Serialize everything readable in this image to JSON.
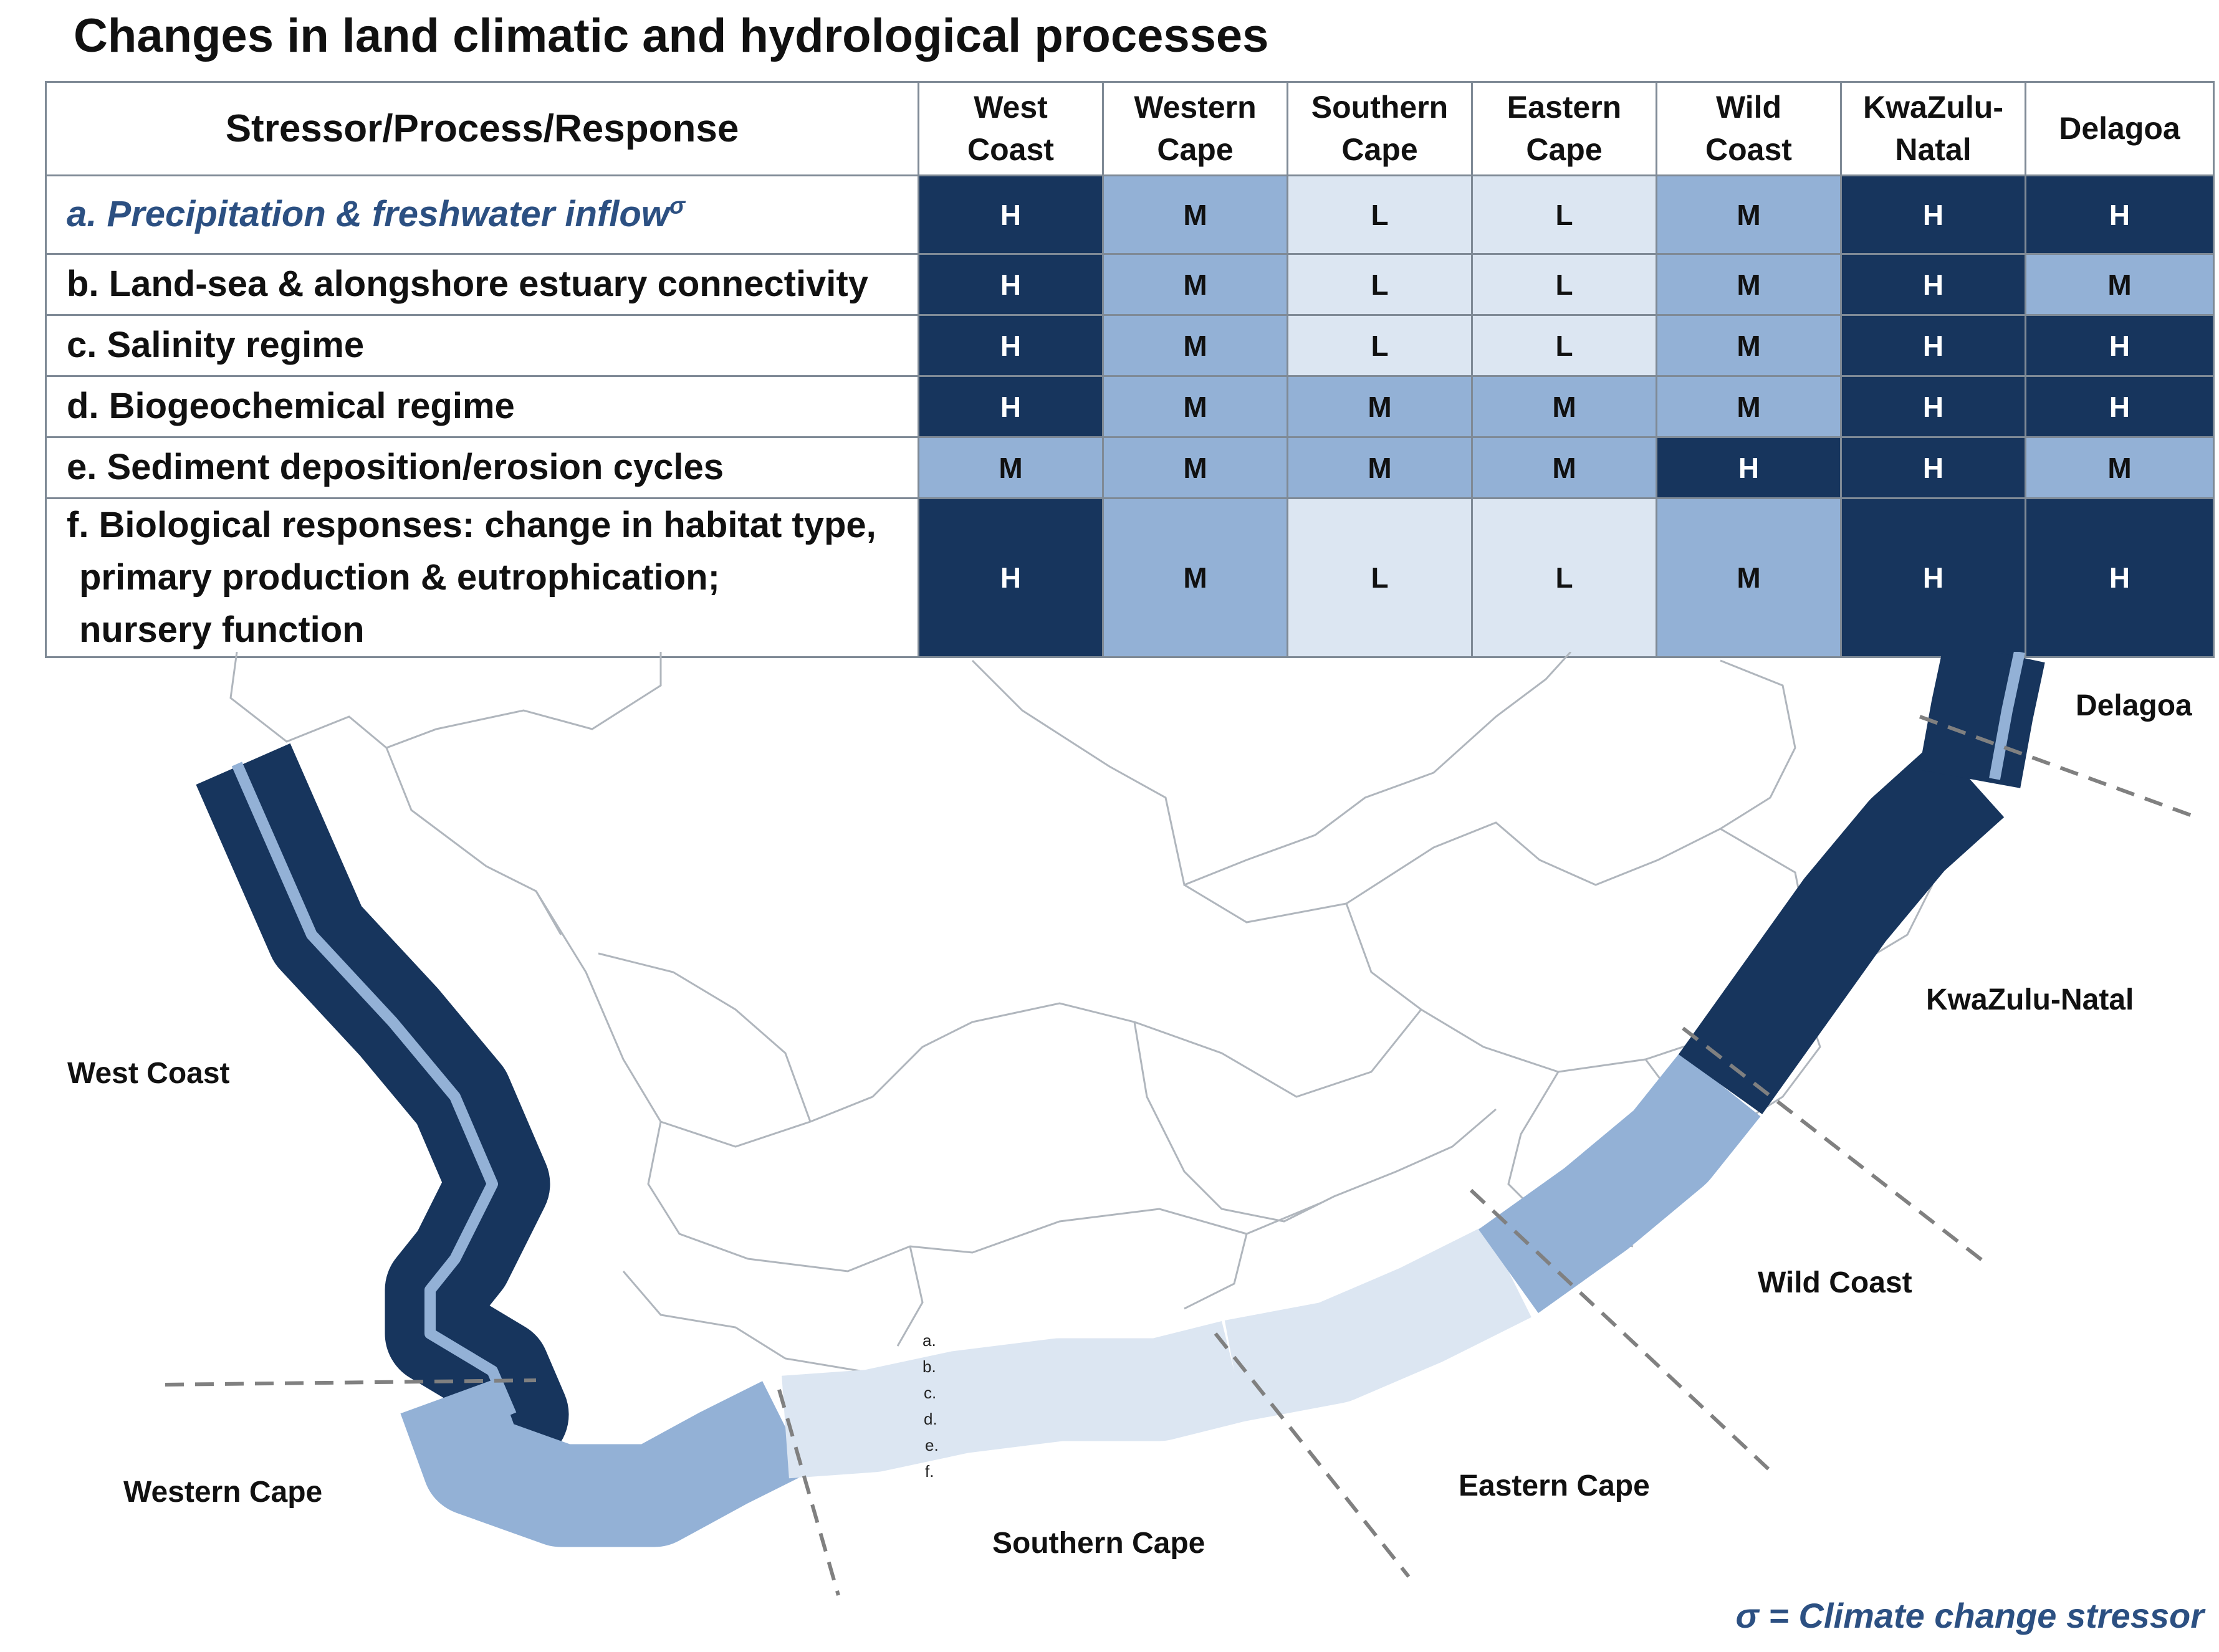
{
  "title": "Changes in land climatic and hydrological processes",
  "table": {
    "header": "Stressor/Process/Response",
    "regions": [
      {
        "line1": "West",
        "line2": "Coast"
      },
      {
        "line1": "Western",
        "line2": "Cape"
      },
      {
        "line1": "Southern",
        "line2": "Cape"
      },
      {
        "line1": "Eastern",
        "line2": "Cape"
      },
      {
        "line1": "Wild",
        "line2": "Coast"
      },
      {
        "line1": "KwaZulu-",
        "line2": "Natal"
      },
      {
        "line1": "Delagoa",
        "line2": ""
      }
    ],
    "rows": [
      {
        "label": "a. Precipitation & freshwater inflow",
        "marker": "σ",
        "levels": [
          "H",
          "M",
          "L",
          "L",
          "M",
          "H",
          "H"
        ]
      },
      {
        "label": "b. Land-sea & alongshore estuary connectivity",
        "levels": [
          "H",
          "M",
          "L",
          "L",
          "M",
          "H",
          "M"
        ]
      },
      {
        "label": "c. Salinity regime",
        "levels": [
          "H",
          "M",
          "L",
          "L",
          "M",
          "H",
          "H"
        ]
      },
      {
        "label": "d. Biogeochemical regime",
        "levels": [
          "H",
          "M",
          "M",
          "M",
          "M",
          "H",
          "H"
        ]
      },
      {
        "label": "e. Sediment deposition/erosion cycles",
        "levels": [
          "M",
          "M",
          "M",
          "M",
          "H",
          "H",
          "M"
        ]
      },
      {
        "label_line1": "f. Biological responses:  change in habitat type,",
        "label_line2": "primary production & eutrophication;",
        "label_line3": "nursery function",
        "levels": [
          "H",
          "M",
          "L",
          "L",
          "M",
          "H",
          "H"
        ]
      }
    ]
  },
  "level_colors": {
    "H": "#17355d",
    "M": "#93b1d6",
    "L": "#dce6f2"
  },
  "map": {
    "region_labels": {
      "delagoa": "Delagoa",
      "kwazulu_natal": "KwaZulu-Natal",
      "west_coast": "West Coast",
      "wild_coast": "Wild Coast",
      "western_cape": "Western Cape",
      "eastern_cape": "Eastern Cape",
      "southern_cape": "Southern Cape"
    },
    "band_row_labels": [
      "a.",
      "b.",
      "c.",
      "d.",
      "e.",
      "f."
    ]
  },
  "footnote": "σ = Climate  change stressor"
}
